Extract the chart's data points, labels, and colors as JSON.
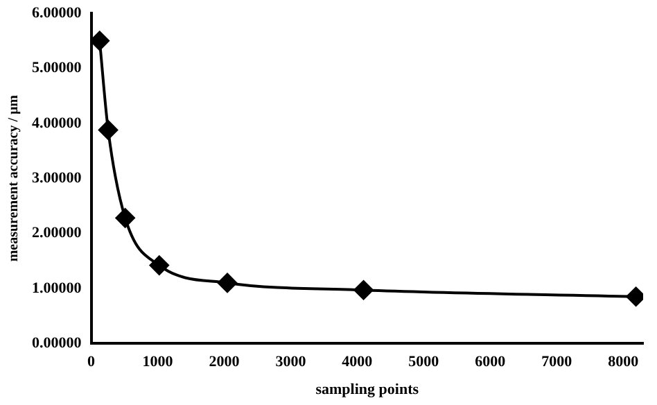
{
  "chart_data": {
    "type": "line",
    "xlabel": "sampling points",
    "ylabel": "measurement accuracy / μm",
    "x": [
      128,
      256,
      512,
      1024,
      2048,
      4096,
      8192
    ],
    "series": [
      {
        "color": "#000000",
        "values": [
          5.5,
          3.88,
          2.28,
          1.42,
          1.1,
          0.97,
          0.85
        ]
      }
    ],
    "xlim": [
      0,
      8300
    ],
    "xticks": [
      0,
      1000,
      2000,
      3000,
      4000,
      5000,
      6000,
      7000,
      8000
    ],
    "ylim": [
      0,
      6
    ],
    "yticks": [
      {
        "value": 0,
        "label": "0.00000"
      },
      {
        "value": 1,
        "label": "1.00000"
      },
      {
        "value": 2,
        "label": "2.00000"
      },
      {
        "value": 3,
        "label": "3.00000"
      },
      {
        "value": 4,
        "label": "4.00000"
      },
      {
        "value": 5,
        "label": "5.00000"
      },
      {
        "value": 6,
        "label": "6.00000"
      }
    ],
    "grid": false,
    "legend": false,
    "marker": "diamond",
    "line_style": "solid"
  }
}
